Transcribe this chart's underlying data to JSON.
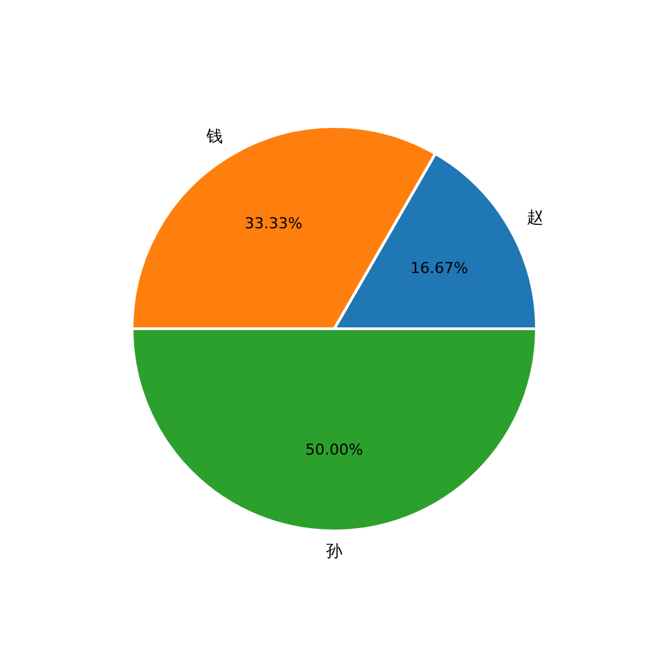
{
  "chart_data": {
    "type": "pie",
    "categories": [
      "赵",
      "钱",
      "孙"
    ],
    "values": [
      16.67,
      33.33,
      50.0
    ],
    "colors": [
      "#1f77b4",
      "#ff7f0e",
      "#2ca02c"
    ],
    "value_labels": [
      "16.67%",
      "33.33%",
      "50.00%"
    ],
    "legend": false
  }
}
